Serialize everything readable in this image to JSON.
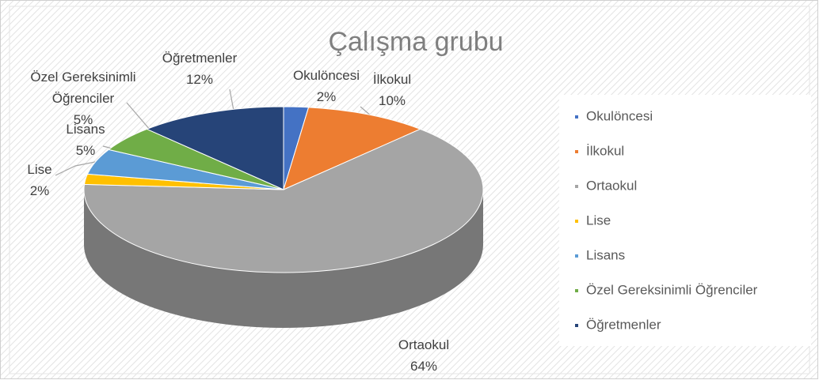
{
  "chart_data": {
    "type": "pie",
    "title": "Çalışma grubu",
    "categories": [
      "Okulöncesi",
      "İlkokul",
      "Ortaokul",
      "Lise",
      "Lisans",
      "Özel Gereksinimli Öğrenciler",
      "Öğretmenler"
    ],
    "values": [
      2,
      10,
      64,
      2,
      5,
      5,
      12
    ],
    "value_labels": [
      "2%",
      "10%",
      "64%",
      "2%",
      "5%",
      "5%",
      "12%"
    ],
    "colors": [
      "#4472c4",
      "#ed7d31",
      "#a5a5a5",
      "#ffc000",
      "#5b9bd5",
      "#70ad47",
      "#264478"
    ],
    "legend": "right"
  }
}
